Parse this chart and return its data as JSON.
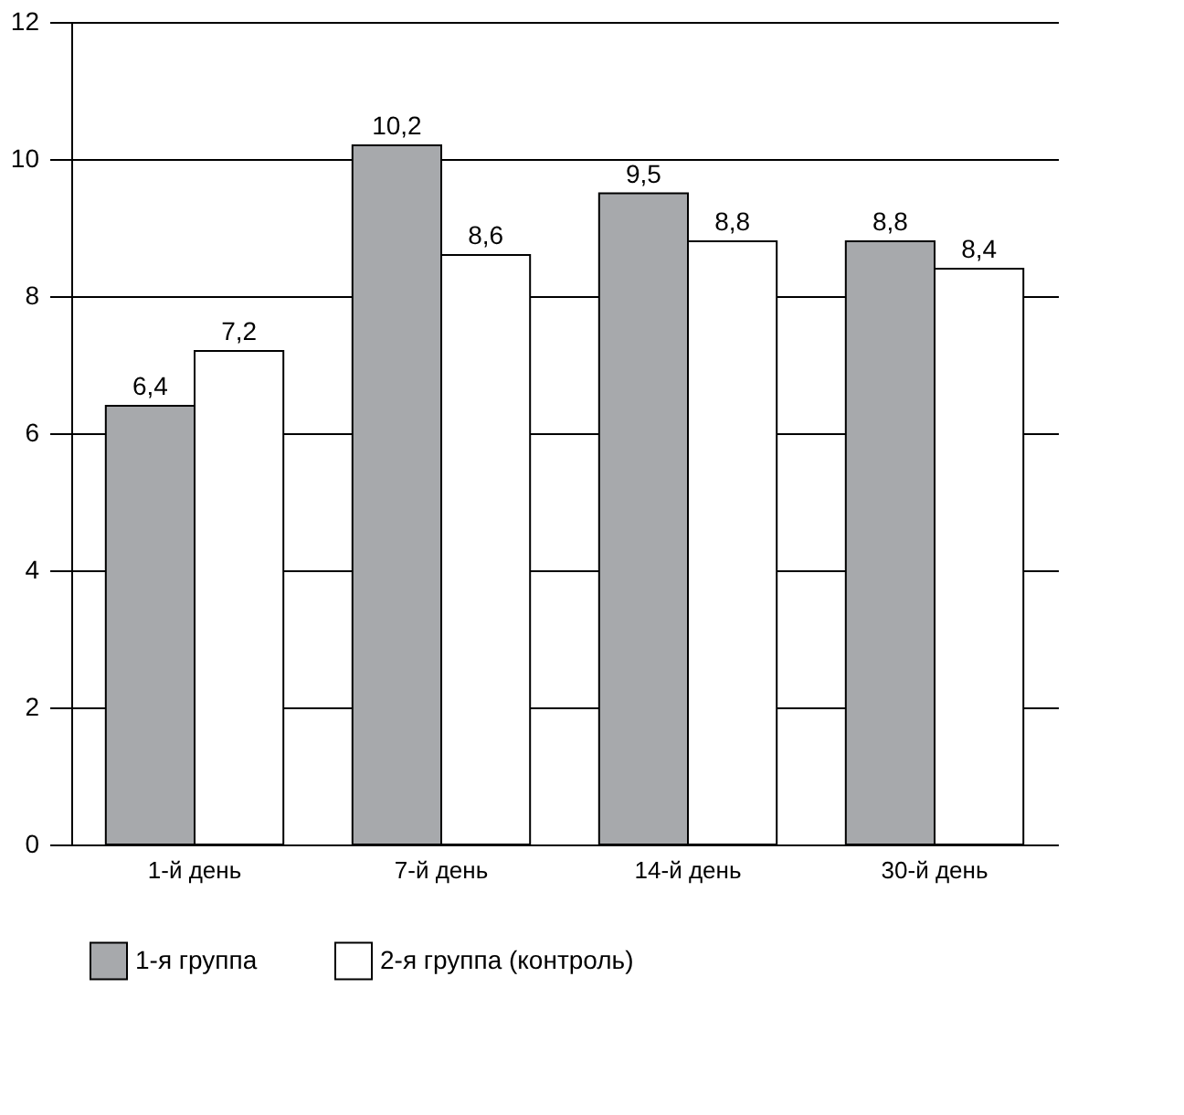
{
  "chart_data": {
    "type": "bar",
    "categories": [
      "1-й день",
      "7-й день",
      "14-й день",
      "30-й день"
    ],
    "series": [
      {
        "name": "1-я группа",
        "color": "#a7a9ac",
        "values": [
          6.4,
          10.2,
          9.5,
          8.8
        ],
        "value_labels": [
          "6,4",
          "10,2",
          "9,5",
          "8,8"
        ]
      },
      {
        "name": "2-я группа (контроль)",
        "color": "#ffffff",
        "values": [
          7.2,
          8.6,
          8.8,
          8.4
        ],
        "value_labels": [
          "7,2",
          "8,6",
          "8,8",
          "8,4"
        ]
      }
    ],
    "ylim": [
      0,
      12
    ],
    "yticks": [
      0,
      2,
      4,
      6,
      8,
      10,
      12
    ],
    "grid": "y",
    "legend": "bottom"
  }
}
